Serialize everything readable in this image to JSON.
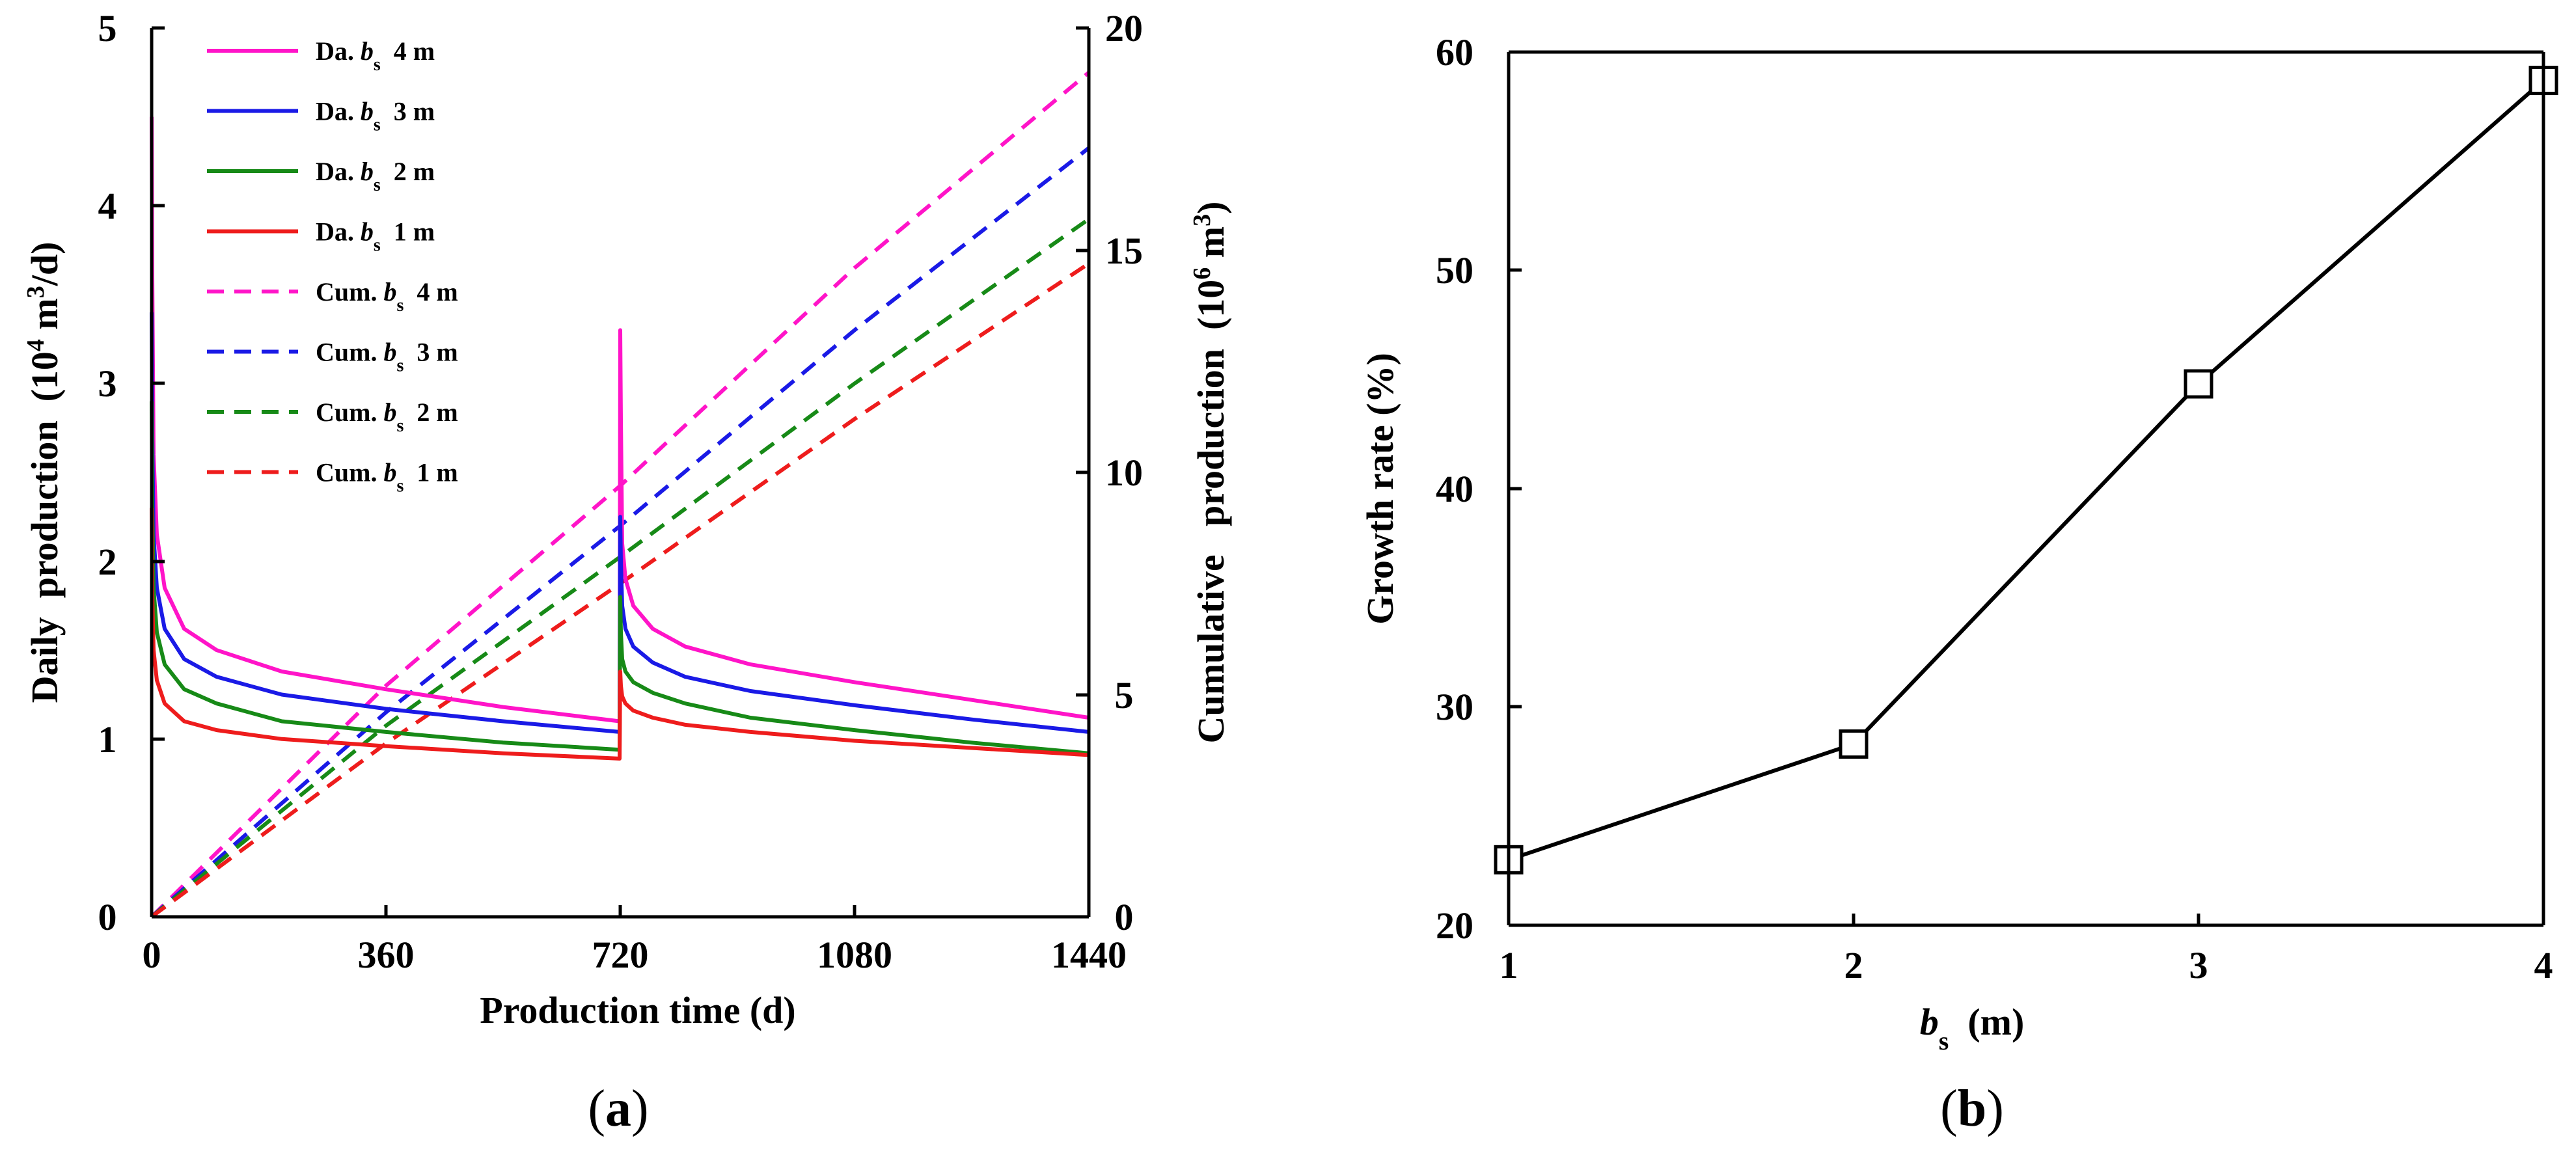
{
  "figure": {
    "panel_a_label": "a",
    "panel_b_label": "b"
  },
  "colors": {
    "b4": "#ff14c8",
    "b3": "#1a1ae6",
    "b2": "#178a17",
    "b1": "#ee1c1c",
    "axis": "#000000"
  },
  "chart_data": [
    {
      "id": "a",
      "type": "line",
      "xlabel": "Production time (d)",
      "ylabel_left": "Daily production (10^4 m^3/d)",
      "ylabel_right": "Cumulative production (10^6 m^3)",
      "xlim": [
        0,
        1440
      ],
      "ylim_left": [
        0,
        5
      ],
      "ylim_right": [
        0,
        20
      ],
      "x_ticks": [
        "0",
        "360",
        "720",
        "1080",
        "1440"
      ],
      "y_left_ticks": [
        "0",
        "1",
        "2",
        "3",
        "4",
        "5"
      ],
      "y_right_ticks": [
        "0",
        "5",
        "10",
        "15",
        "20"
      ],
      "legend": [
        {
          "pre": "Da. ",
          "italic": "b",
          "sub": "s",
          "post": "  4 m",
          "color_key": "b4",
          "dash": false
        },
        {
          "pre": "Da. ",
          "italic": "b",
          "sub": "s",
          "post": "  3 m",
          "color_key": "b3",
          "dash": false
        },
        {
          "pre": "Da. ",
          "italic": "b",
          "sub": "s",
          "post": "  2 m",
          "color_key": "b2",
          "dash": false
        },
        {
          "pre": "Da. ",
          "italic": "b",
          "sub": "s",
          "post": "  1 m",
          "color_key": "b1",
          "dash": false
        },
        {
          "pre": "Cum. ",
          "italic": "b",
          "sub": "s",
          "post": "  4 m",
          "color_key": "b4",
          "dash": true
        },
        {
          "pre": "Cum. ",
          "italic": "b",
          "sub": "s",
          "post": "  3 m",
          "color_key": "b3",
          "dash": true
        },
        {
          "pre": "Cum. ",
          "italic": "b",
          "sub": "s",
          "post": "  2 m",
          "color_key": "b2",
          "dash": true
        },
        {
          "pre": "Cum. ",
          "italic": "b",
          "sub": "s",
          "post": "  1 m",
          "color_key": "b1",
          "dash": true
        }
      ],
      "daily_series": [
        {
          "name": "Da. bs 4 m",
          "color_key": "b4",
          "x": [
            0,
            1,
            3,
            8,
            20,
            50,
            100,
            200,
            360,
            540,
            719,
            720,
            721,
            723,
            728,
            740,
            770,
            820,
            920,
            1080,
            1260,
            1440
          ],
          "y": [
            4.5,
            3.6,
            2.6,
            2.15,
            1.85,
            1.62,
            1.5,
            1.38,
            1.28,
            1.18,
            1.1,
            3.3,
            2.8,
            2.1,
            1.9,
            1.75,
            1.62,
            1.52,
            1.42,
            1.32,
            1.22,
            1.12
          ]
        },
        {
          "name": "Da. bs 3 m",
          "color_key": "b3",
          "x": [
            0,
            1,
            3,
            8,
            20,
            50,
            100,
            200,
            360,
            540,
            719,
            720,
            721,
            723,
            728,
            740,
            770,
            820,
            920,
            1080,
            1260,
            1440
          ],
          "y": [
            3.4,
            2.7,
            2.15,
            1.85,
            1.62,
            1.45,
            1.35,
            1.25,
            1.17,
            1.1,
            1.04,
            2.25,
            2.0,
            1.75,
            1.62,
            1.52,
            1.43,
            1.35,
            1.27,
            1.19,
            1.11,
            1.04
          ]
        },
        {
          "name": "Da. bs 2 m",
          "color_key": "b2",
          "x": [
            0,
            1,
            3,
            8,
            20,
            50,
            100,
            200,
            360,
            540,
            719,
            720,
            721,
            723,
            728,
            740,
            770,
            820,
            920,
            1080,
            1260,
            1440
          ],
          "y": [
            2.9,
            2.3,
            1.85,
            1.6,
            1.42,
            1.28,
            1.2,
            1.1,
            1.04,
            0.98,
            0.94,
            1.8,
            1.6,
            1.45,
            1.38,
            1.32,
            1.26,
            1.2,
            1.12,
            1.05,
            0.98,
            0.92
          ]
        },
        {
          "name": "Da. bs 1 m",
          "color_key": "b1",
          "x": [
            0,
            1,
            3,
            8,
            20,
            50,
            100,
            200,
            360,
            540,
            719,
            720,
            721,
            723,
            728,
            740,
            770,
            820,
            920,
            1080,
            1260,
            1440
          ],
          "y": [
            2.3,
            1.8,
            1.5,
            1.33,
            1.2,
            1.1,
            1.05,
            1.0,
            0.96,
            0.92,
            0.89,
            1.38,
            1.3,
            1.24,
            1.2,
            1.16,
            1.12,
            1.08,
            1.04,
            0.99,
            0.95,
            0.91
          ]
        }
      ],
      "cumulative_series": [
        {
          "name": "Cum. bs 4 m",
          "color_key": "b4",
          "x": [
            0,
            360,
            720,
            1080,
            1440
          ],
          "y": [
            0,
            5.2,
            9.7,
            14.6,
            19.0
          ]
        },
        {
          "name": "Cum. bs 3 m",
          "color_key": "b3",
          "x": [
            0,
            360,
            720,
            1080,
            1440
          ],
          "y": [
            0,
            4.6,
            8.8,
            13.2,
            17.3
          ]
        },
        {
          "name": "Cum. bs 2 m",
          "color_key": "b2",
          "x": [
            0,
            360,
            720,
            1080,
            1440
          ],
          "y": [
            0,
            4.3,
            8.1,
            12.0,
            15.7
          ]
        },
        {
          "name": "Cum. bs 1 m",
          "color_key": "b1",
          "x": [
            0,
            360,
            720,
            1080,
            1440
          ],
          "y": [
            0,
            3.9,
            7.5,
            11.2,
            14.7
          ]
        }
      ]
    },
    {
      "id": "b",
      "type": "line",
      "xlabel": "bs (m)",
      "ylabel": "Growth rate (%)",
      "xlim": [
        1,
        4
      ],
      "ylim": [
        20,
        60
      ],
      "x_ticks": [
        "1",
        "2",
        "3",
        "4"
      ],
      "y_ticks": [
        "20",
        "30",
        "40",
        "50",
        "60"
      ],
      "x": [
        1,
        2,
        3,
        4
      ],
      "y": [
        23.0,
        28.3,
        44.8,
        58.7
      ],
      "marker": "open-square"
    }
  ]
}
